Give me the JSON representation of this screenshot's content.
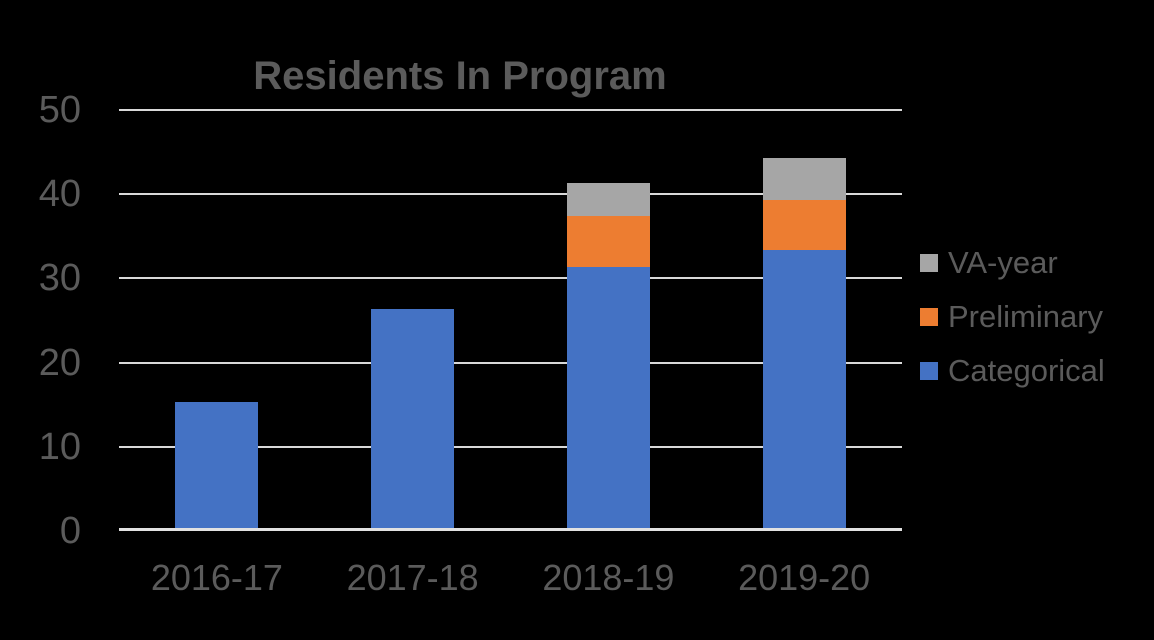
{
  "chart_data": {
    "type": "bar",
    "stacked": true,
    "title": "Residents In Program",
    "categories": [
      "2016-17",
      "2017-18",
      "2018-19",
      "2019-20"
    ],
    "series": [
      {
        "name": "Categorical",
        "color": "#4472C4",
        "values": [
          15,
          26,
          31,
          33
        ]
      },
      {
        "name": "Preliminary",
        "color": "#ED7D31",
        "values": [
          0,
          0,
          6,
          6
        ]
      },
      {
        "name": "VA-year",
        "color": "#A6A6A6",
        "values": [
          0,
          0,
          4,
          5
        ]
      }
    ],
    "stack_totals": [
      15,
      26,
      41,
      44
    ],
    "xlabel": "",
    "ylabel": "",
    "ylim": [
      0,
      50
    ],
    "y_ticks": [
      0,
      10,
      20,
      30,
      40,
      50
    ],
    "grid": true,
    "legend_position": "right",
    "legend_order_top_to_bottom": [
      "VA-year",
      "Preliminary",
      "Categorical"
    ],
    "colors": {
      "background": "#000000",
      "gridline": "#D9D9D9",
      "axis_line": "#E2E2E2",
      "text": "#5B5B5B"
    }
  }
}
